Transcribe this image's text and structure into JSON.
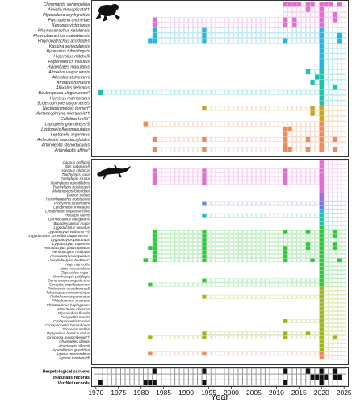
{
  "chart_data": {
    "type": "heatmap",
    "xlabel": "Year",
    "xlim": [
      1970,
      2025
    ],
    "xticks": [
      1970,
      1975,
      1980,
      1985,
      1990,
      1995,
      2000,
      2005,
      2010,
      2015,
      2020,
      2025
    ],
    "grid": false,
    "panels": [
      {
        "group": "amphibians",
        "icon": "frog-silhouette-icon",
        "rows": [
          {
            "name": "Chiromantis xerampelina",
            "color": "#e26cd1",
            "start": 2012,
            "years": [
              2012,
              2013,
              2014,
              2015,
              2017,
              2018,
              2020,
              2021,
              2022,
              2024
            ]
          },
          {
            "name": "Amietia tenuoplicata*†",
            "color": "#e26cd1",
            "start": 2012,
            "years": [
              2017,
              2020
            ]
          },
          {
            "name": "Ptychadena oxyrhynchus",
            "color": "#e26cd1",
            "start": 2012,
            "years": [
              2020,
              2023
            ]
          },
          {
            "name": "Ptychadena anchietae",
            "color": "#e26cd1",
            "start": 1983,
            "years": [
              1983,
              2012,
              2014,
              2020,
              2023
            ]
          },
          {
            "name": "Xenopus victorianus",
            "color": "#e26cd1",
            "start": 1983,
            "years": [
              1983,
              2012,
              2014,
              2020
            ]
          },
          {
            "name": "Phrynobatrachus natalensis",
            "color": "#22b6e0",
            "start": 1983,
            "years": [
              1983,
              1994,
              2020
            ]
          },
          {
            "name": "Phrynobatrachus mababiensis",
            "color": "#22b6e0",
            "start": 1983,
            "years": [
              1983,
              1994,
              2020,
              2024
            ]
          },
          {
            "name": "Phrynobatrachus acridoides",
            "color": "#22b6e0",
            "start": 1982,
            "years": [
              1982,
              1983,
              1994,
              2012,
              2020,
              2024
            ]
          },
          {
            "name": "Kassina senegalensis",
            "color": "#22b6e0",
            "start": 2020,
            "years": [
              2020
            ]
          },
          {
            "name": "Hyperolius tuberilinguis",
            "color": "#22b6e0",
            "start": 2020,
            "years": [
              2020
            ]
          },
          {
            "name": "Hyperolius mitchelli",
            "color": "#22b6e0",
            "start": 2020,
            "years": [
              2020
            ]
          },
          {
            "name": "Hyperolius cf. nasutus",
            "color": "#22b6e0",
            "start": 2020,
            "years": [
              2020
            ]
          },
          {
            "name": "Hylambates maculatus",
            "color": "#22b6e0",
            "start": 2020,
            "years": [
              2020
            ]
          },
          {
            "name": "Afrixalus uluguruensis",
            "color": "#1fc0b0",
            "start": 2017,
            "years": [
              2017,
              2020
            ]
          },
          {
            "name": "Afrixalus stuhlmanni",
            "color": "#1fc0b0",
            "start": 2019,
            "years": [
              2019,
              2020
            ]
          },
          {
            "name": "Afrixalus fornasini",
            "color": "#1fc0b0",
            "start": 2018,
            "years": [
              2018,
              2020
            ]
          },
          {
            "name": "Afrixalus delicatus",
            "color": "#1fc0b0",
            "start": 2020,
            "years": [
              2020,
              2023
            ]
          },
          {
            "name": "Boulengerula uluguruensis*",
            "color": "#1fc0b0",
            "start": 1971,
            "years": [
              1971,
              2020
            ]
          },
          {
            "name": "Hemisus marmoratus",
            "color": "#1fc0b0",
            "start": 2020,
            "years": [
              2020
            ]
          },
          {
            "name": "Scolecophryne uluguruensis",
            "color": "#1fc0b0",
            "start": 2020,
            "years": [
              2020
            ]
          },
          {
            "name": "Nectophrynoides tornieri*",
            "color": "#c9a325",
            "start": 1994,
            "years": [
              1994,
              2018,
              2020
            ]
          },
          {
            "name": "Mertensophryne micranotis*†",
            "color": "#c9a325",
            "start": 2018,
            "years": [
              2018,
              2020
            ]
          },
          {
            "name": "Callulina kreffti*",
            "color": "#c9a325",
            "start": 2020,
            "years": [
              2020
            ]
          },
          {
            "name": "Leptopelis grandiceps*§",
            "color": "#ee8a58",
            "start": 1981,
            "years": [
              1981,
              2020
            ]
          },
          {
            "name": "Leptopelis flavomaculatus",
            "color": "#ee8a58",
            "start": 2012,
            "years": [
              2012,
              2013,
              2020
            ]
          },
          {
            "name": "Leptopelis argenteus",
            "color": "#ee8a58",
            "start": 2012,
            "years": [
              2012,
              2020
            ]
          },
          {
            "name": "Arthroleptis xenodactyloides",
            "color": "#ee8a58",
            "start": 1983,
            "years": [
              1983,
              1994,
              2012,
              2017,
              2020,
              2023
            ]
          },
          {
            "name": "Arthroleptis stenodactylus",
            "color": "#ee8a58",
            "start": 2012,
            "years": [
              2012,
              2020
            ]
          },
          {
            "name": "Arthroleptis affinis*",
            "color": "#ee8a58",
            "start": 1983,
            "years": [
              1983,
              1994,
              2012,
              2013,
              2017,
              2020,
              2023
            ]
          }
        ]
      },
      {
        "group": "reptiles",
        "icon": "lizard-silhouette-icon",
        "rows": [
          {
            "name": "Causus defilippii",
            "color": "#e26cd1",
            "start": 2020,
            "years": [
              2020
            ]
          },
          {
            "name": "Bitis gabonica§",
            "color": "#e26cd1",
            "start": 2020,
            "years": [
              2020
            ]
          },
          {
            "name": "Varanus niloticus",
            "color": "#e26cd1",
            "start": 1983,
            "years": [
              1983,
              1994,
              2012,
              2020
            ]
          },
          {
            "name": "Trachylepis varia",
            "color": "#e26cd1",
            "start": 1983,
            "years": [
              1983,
              1994,
              2012,
              2020
            ]
          },
          {
            "name": "Trachylepis striata",
            "color": "#e26cd1",
            "start": 1983,
            "years": [
              1983,
              1994,
              2012,
              2020
            ]
          },
          {
            "name": "Trachylepis maculilabris",
            "color": "#e26cd1",
            "start": 1983,
            "years": [
              1983,
              1994,
              2012,
              2020
            ]
          },
          {
            "name": "Trachylepis boulengeri",
            "color": "#e26cd1",
            "start": 2020,
            "years": [
              2020
            ]
          },
          {
            "name": "Melanoseps loveridgei",
            "color": "#e26cd1",
            "start": 2020,
            "years": [
              2020
            ]
          },
          {
            "name": "Python sebae",
            "color": "#9a6ee0",
            "start": 2020,
            "years": [
              2020
            ]
          },
          {
            "name": "Hemirhagerrhis nototaenia",
            "color": "#9a6ee0",
            "start": 2020,
            "years": [
              2020
            ]
          },
          {
            "name": "Prosymna stuhlmanni",
            "color": "#6a7ee6",
            "start": 1994,
            "years": [
              1994,
              2020
            ]
          },
          {
            "name": "Lycophidion meleagre",
            "color": "#6a7ee6",
            "start": 2020,
            "years": [
              2020
            ]
          },
          {
            "name": "Lycophidion depressirostre",
            "color": "#22b6e0",
            "start": 2020,
            "years": [
              2020
            ]
          },
          {
            "name": "Holaspis laevis",
            "color": "#1fc0b0",
            "start": 1994,
            "years": [
              1994,
              2020
            ]
          },
          {
            "name": "Gerrhosaurus flavigularis",
            "color": "#1fc0b0",
            "start": 2020,
            "years": [
              2020
            ]
          },
          {
            "name": "Broadleysaurus major",
            "color": "#1fc0b0",
            "start": 2020,
            "years": [
              2020
            ]
          },
          {
            "name": "Lygodactylus viscatus",
            "color": "#2ec93a",
            "start": 2020,
            "years": [
              2020
            ]
          },
          {
            "name": "Lygodactylus williamsi*†§",
            "color": "#2ec93a",
            "start": 1983,
            "years": [
              1983,
              1994,
              2012,
              2017,
              2020,
              2023
            ]
          },
          {
            "name": "Lygodactylus scheffleri uluguruensis*",
            "color": "#2ec93a",
            "start": 1983,
            "years": [
              1983,
              1994,
              2020,
              2023
            ]
          },
          {
            "name": "Lygodactylus picturatus",
            "color": "#2ec93a",
            "start": 1983,
            "years": [
              1983,
              1994,
              2020
            ]
          },
          {
            "name": "Lygodactylus capensis",
            "color": "#2ec93a",
            "start": 1983,
            "years": [
              1983,
              1994,
              2017,
              2020,
              2023
            ]
          },
          {
            "name": "Hemidactylus platycephalus",
            "color": "#2ec93a",
            "start": 1982,
            "years": [
              1982,
              1983,
              1994,
              2012,
              2017,
              2020,
              2023
            ]
          },
          {
            "name": "Hemidactylus mabouia",
            "color": "#2ec93a",
            "start": 1983,
            "years": [
              1983,
              1994,
              2012,
              2020
            ]
          },
          {
            "name": "Hemidactylus angulatus",
            "color": "#2ec93a",
            "start": 1983,
            "years": [
              1983,
              1994,
              2012,
              2020
            ]
          },
          {
            "name": "Ancylodactylus barbouri*",
            "color": "#2ec93a",
            "start": 1981,
            "years": [
              1981,
              1983,
              1994,
              2012,
              2018,
              2020,
              2024
            ]
          },
          {
            "name": "Naja nigricollis",
            "color": "#2ec93a",
            "start": 2020,
            "years": [
              2020
            ]
          },
          {
            "name": "Naja mossambica",
            "color": "#2ec93a",
            "start": 2020,
            "years": [
              2020
            ]
          },
          {
            "name": "Elapsoidea nigra*",
            "color": "#2ec93a",
            "start": 2020,
            "years": [
              2020
            ]
          },
          {
            "name": "Dendroaspis polylepis",
            "color": "#2ec93a",
            "start": 2020,
            "years": [
              2020
            ]
          },
          {
            "name": "Dendroaspis angusticeps",
            "color": "#2ec93a",
            "start": 1994,
            "years": [
              1994,
              2020
            ]
          },
          {
            "name": "Cordylus tropidosternum",
            "color": "#2ec93a",
            "start": 1982,
            "years": [
              1982,
              2020
            ]
          },
          {
            "name": "Thelotornis usambaricus§",
            "color": "#9fb61c",
            "start": 2020,
            "years": [
              2020
            ]
          },
          {
            "name": "Telescopus semiannulatus",
            "color": "#9fb61c",
            "start": 2020,
            "years": [
              2020
            ]
          },
          {
            "name": "Philothamnus punctatus",
            "color": "#9fb61c",
            "start": 1994,
            "years": [
              1994,
              2020
            ]
          },
          {
            "name": "Philothamnus macrops",
            "color": "#9fb61c",
            "start": 2020,
            "years": [
              2020
            ]
          },
          {
            "name": "Philothamnus hoplogaster",
            "color": "#9fb61c",
            "start": 2020,
            "years": [
              2020
            ]
          },
          {
            "name": "Natriciteres olivacea",
            "color": "#9fb61c",
            "start": 2020,
            "years": [
              2020
            ]
          },
          {
            "name": "Dipsadoboa flavida",
            "color": "#9fb61c",
            "start": 2020,
            "years": [
              2020
            ]
          },
          {
            "name": "Dasypeltis medici",
            "color": "#9fb61c",
            "start": 2020,
            "years": [
              2020
            ]
          },
          {
            "name": "Crotaphopeltis tornieri",
            "color": "#9fb61c",
            "start": 2012,
            "years": [
              2012,
              2020
            ]
          },
          {
            "name": "Crotaphopeltis hotamboeia",
            "color": "#9fb61c",
            "start": 2020,
            "years": [
              2020
            ]
          },
          {
            "name": "Trioceros melleri",
            "color": "#9fb61c",
            "start": 2020,
            "years": [
              2020
            ]
          },
          {
            "name": "Rieppeleon brevicaudatus",
            "color": "#9fb61c",
            "start": 1994,
            "years": [
              1994,
              2012,
              2017,
              2020
            ]
          },
          {
            "name": "Kinyongia magomberae*†",
            "color": "#9fb61c",
            "start": 1982,
            "years": [
              1982,
              1994,
              2012,
              2020,
              2023
            ]
          },
          {
            "name": "Chamaeleo dilepis",
            "color": "#9fb61c",
            "start": 2020,
            "years": [
              2020
            ]
          },
          {
            "name": "Atractaspis bibronii",
            "color": "#9fb61c",
            "start": 2020,
            "years": [
              2020
            ]
          },
          {
            "name": "Aparallactus guentheri",
            "color": "#9fb61c",
            "start": 2020,
            "years": [
              2020
            ]
          },
          {
            "name": "Agama mossambica",
            "color": "#ee8a58",
            "start": 1982,
            "years": [
              1982,
              1994,
              2020
            ]
          },
          {
            "name": "Agama montana*§",
            "color": "#ee8a58",
            "start": 2020,
            "years": [
              2020
            ]
          }
        ]
      }
    ],
    "record_types": [
      {
        "name": "Herpetological surveys",
        "years": [
          1983,
          1994,
          2012,
          2017,
          2020,
          2023
        ]
      },
      {
        "name": "iNaturalis records",
        "years": [
          2018,
          2019,
          2020,
          2021,
          2023,
          2024
        ]
      },
      {
        "name": "VertNet records",
        "years": [
          1971,
          1981,
          1982,
          1983,
          1994,
          2012,
          2020
        ]
      }
    ]
  }
}
